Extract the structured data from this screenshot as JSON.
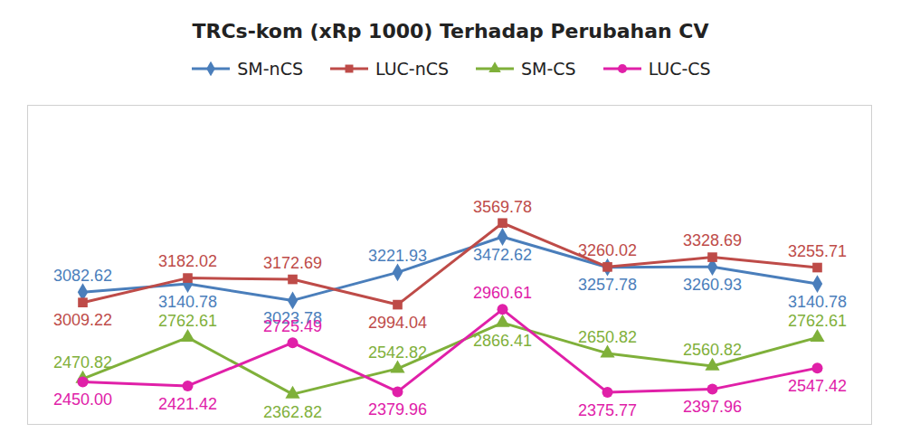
{
  "chart_data": {
    "type": "line",
    "title": "TRCs-kom (xRp 1000) Terhadap Perubahan CV",
    "categories": [
      null,
      null,
      null,
      null,
      null,
      null,
      null,
      null
    ],
    "series": [
      {
        "name": "SM-nCS",
        "color": "#4a7ebb",
        "marker": "diamond",
        "values": [
          3082.62,
          3140.78,
          3023.78,
          3221.93,
          3472.62,
          3257.78,
          3260.93,
          3140.78
        ]
      },
      {
        "name": "LUC-nCS",
        "color": "#be4b48",
        "marker": "square",
        "values": [
          3009.22,
          3182.02,
          3172.69,
          2994.04,
          3569.78,
          3260.02,
          3328.69,
          3255.71
        ]
      },
      {
        "name": "SM-CS",
        "color": "#7fb03a",
        "marker": "triangle",
        "values": [
          2470.82,
          2762.61,
          2362.82,
          2542.82,
          2866.41,
          2650.82,
          2560.82,
          2762.61
        ]
      },
      {
        "name": "LUC-CS",
        "color": "#e020a8",
        "marker": "circle",
        "values": [
          2450,
          2421.42,
          2725.49,
          2379.96,
          2960.61,
          2375.77,
          2397.96,
          2547.42
        ],
        "value_labels": [
          "2450.00",
          "2421.42",
          "2725.49",
          "2379.96",
          "2960.61",
          "2375.77",
          "2397.96",
          "2547.42"
        ]
      }
    ],
    "ylim": [
      2150,
      4400
    ],
    "yticks": [],
    "tick_labels": false,
    "data_labels": true,
    "legend": "top"
  }
}
